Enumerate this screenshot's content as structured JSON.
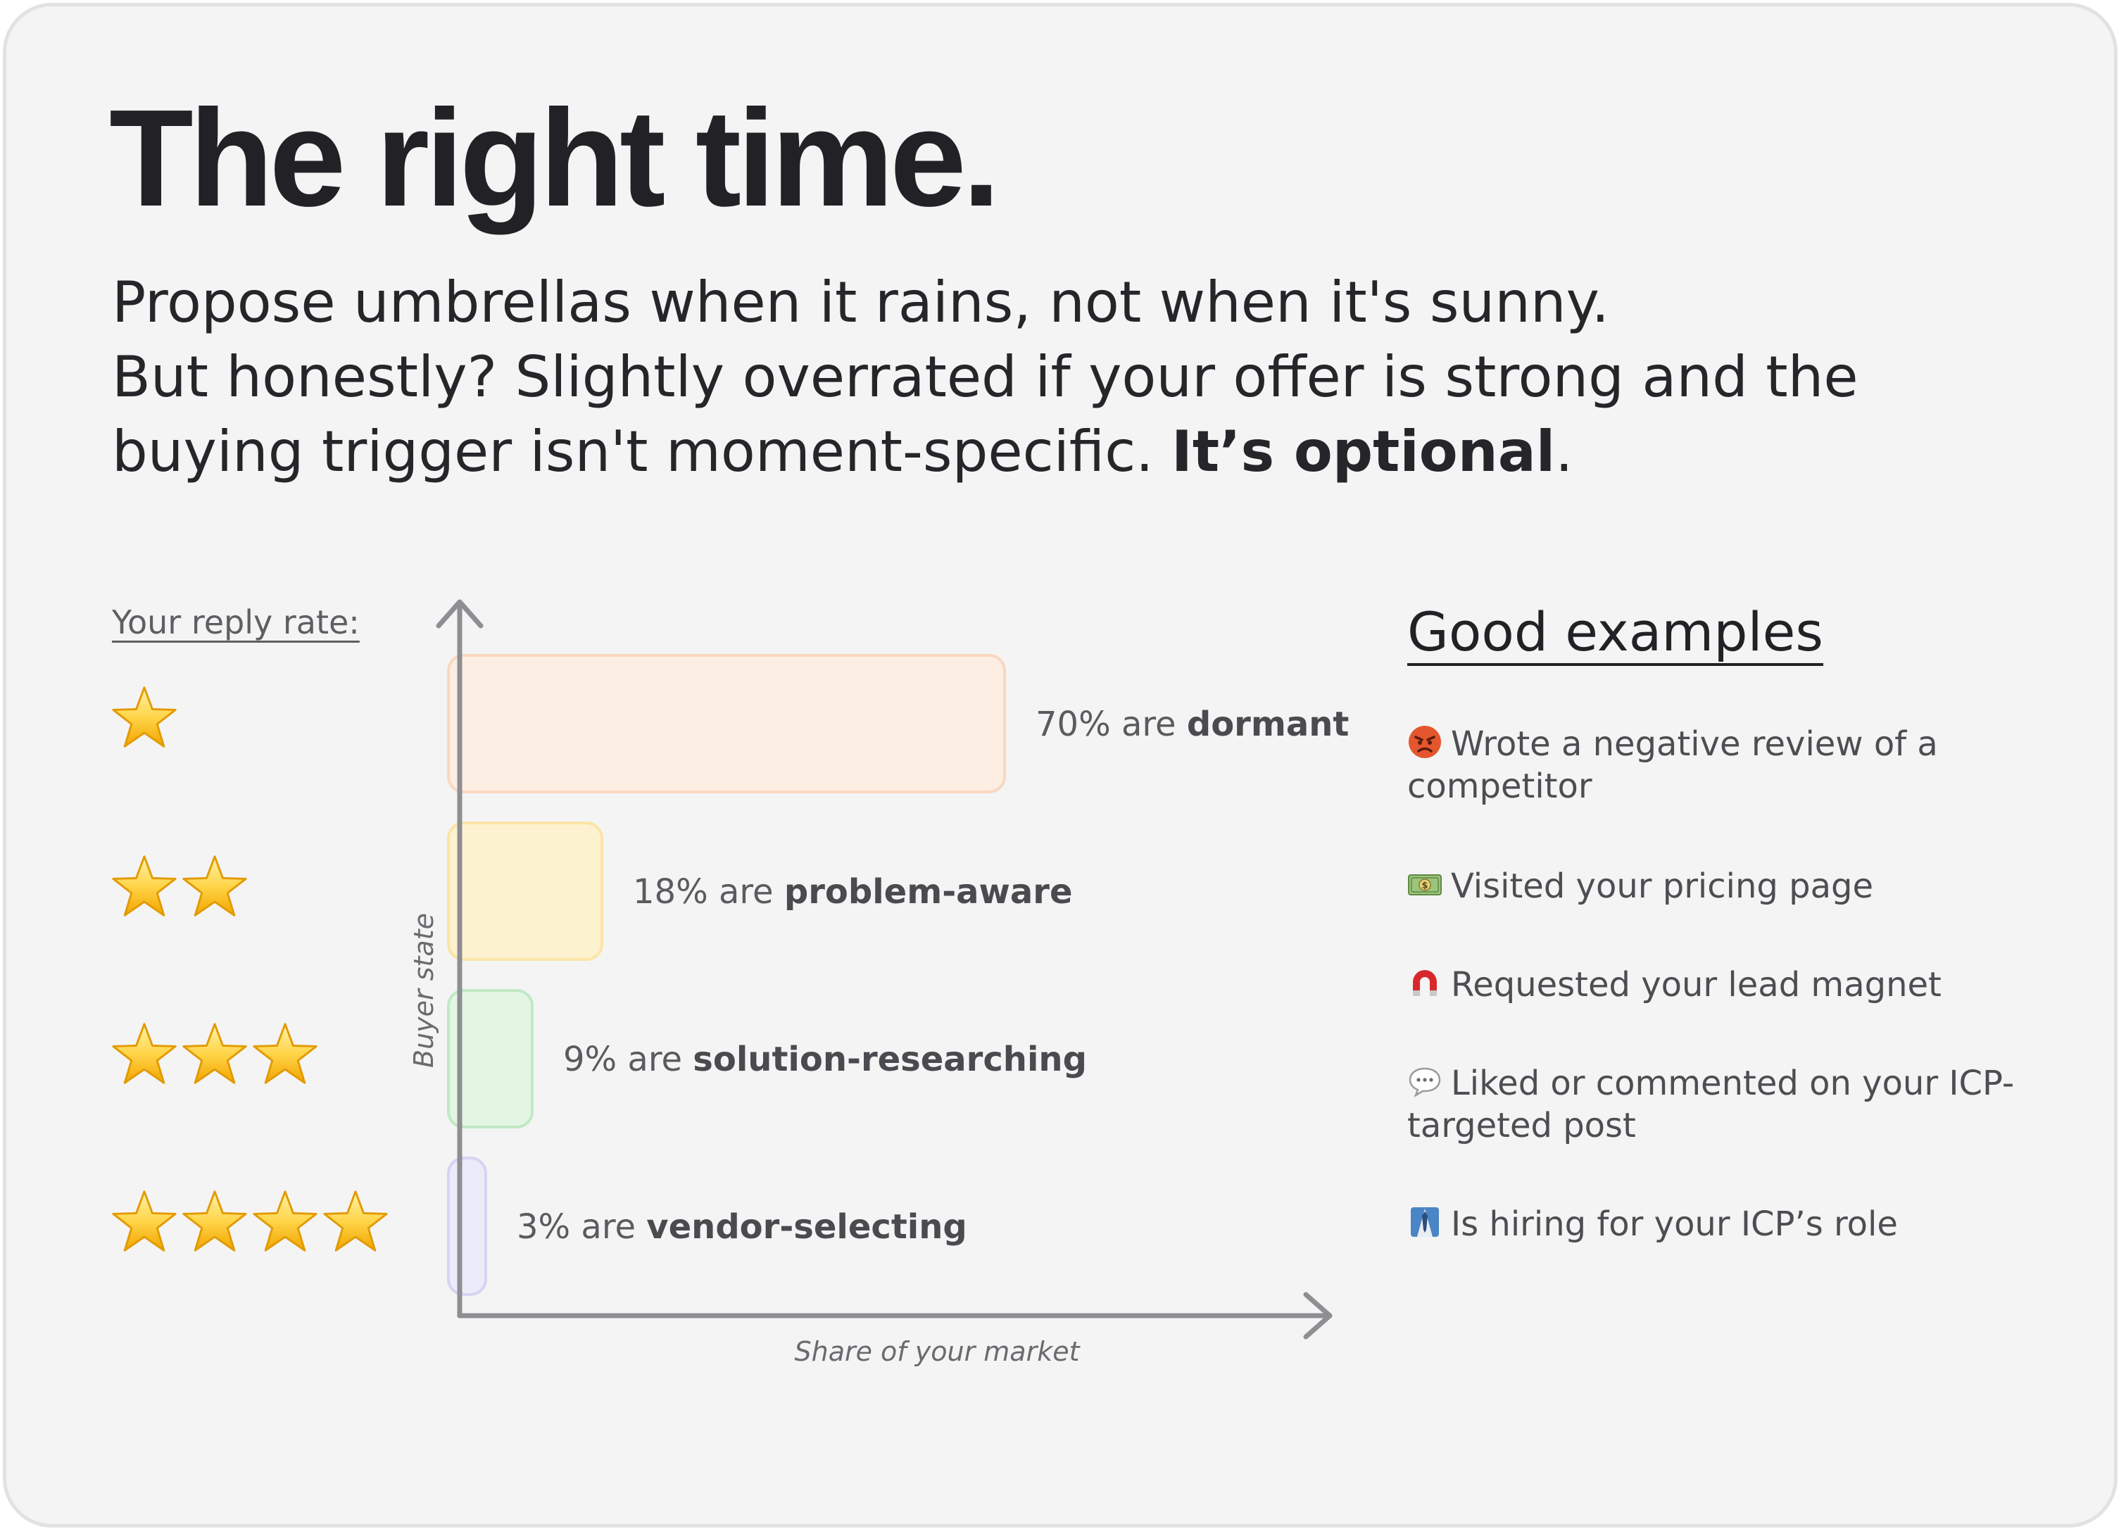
{
  "title": "The right time.",
  "subtitle": {
    "line1": "Propose umbrellas when it rains, not when it's sunny.",
    "line2": "But honestly? Slightly overrated if your offer is strong and the",
    "line3_plain": "buying trigger isn't moment-specific.",
    "line3_bold": "It’s optional",
    "line3_end": "."
  },
  "reply_rate_label": "Your reply rate:",
  "reply_rates": [
    {
      "stars": 1
    },
    {
      "stars": 2
    },
    {
      "stars": 3
    },
    {
      "stars": 4
    }
  ],
  "chart_data": {
    "type": "bar",
    "orientation": "horizontal",
    "ylabel": "Buyer state",
    "xlabel": "Share of your market",
    "xlim": [
      0,
      100
    ],
    "grid": false,
    "categories": [
      "dormant",
      "problem-aware",
      "solution-researching",
      "vendor-selecting"
    ],
    "values": [
      70,
      18,
      9,
      3
    ],
    "data_labels": [
      {
        "prefix": "70% are ",
        "bold": "dormant"
      },
      {
        "prefix": "18% are ",
        "bold": "problem-aware"
      },
      {
        "prefix": "9% are ",
        "bold": "solution-researching"
      },
      {
        "prefix": "3% are ",
        "bold": "vendor-selecting"
      }
    ],
    "colors": [
      {
        "fill": "#fdeee3",
        "stroke": "#fbd7c0"
      },
      {
        "fill": "#fdf2cf",
        "stroke": "#fbe5a6"
      },
      {
        "fill": "#e3f5e3",
        "stroke": "#bfe9c5"
      },
      {
        "fill": "#ecebfa",
        "stroke": "#d6d4f3"
      }
    ],
    "axis_color": "#8e8e93"
  },
  "examples": {
    "title": "Good examples",
    "items": [
      {
        "icon": "angry-face-icon",
        "text": "Wrote a negative review of a competitor"
      },
      {
        "icon": "money-icon",
        "text": "Visited your pricing page"
      },
      {
        "icon": "magnet-icon",
        "text": "Requested your lead magnet"
      },
      {
        "icon": "speech-bubble-icon",
        "text": "Liked or commented on your ICP-targeted post"
      },
      {
        "icon": "tie-person-icon",
        "text": "Is hiring for your ICP’s role"
      }
    ]
  }
}
